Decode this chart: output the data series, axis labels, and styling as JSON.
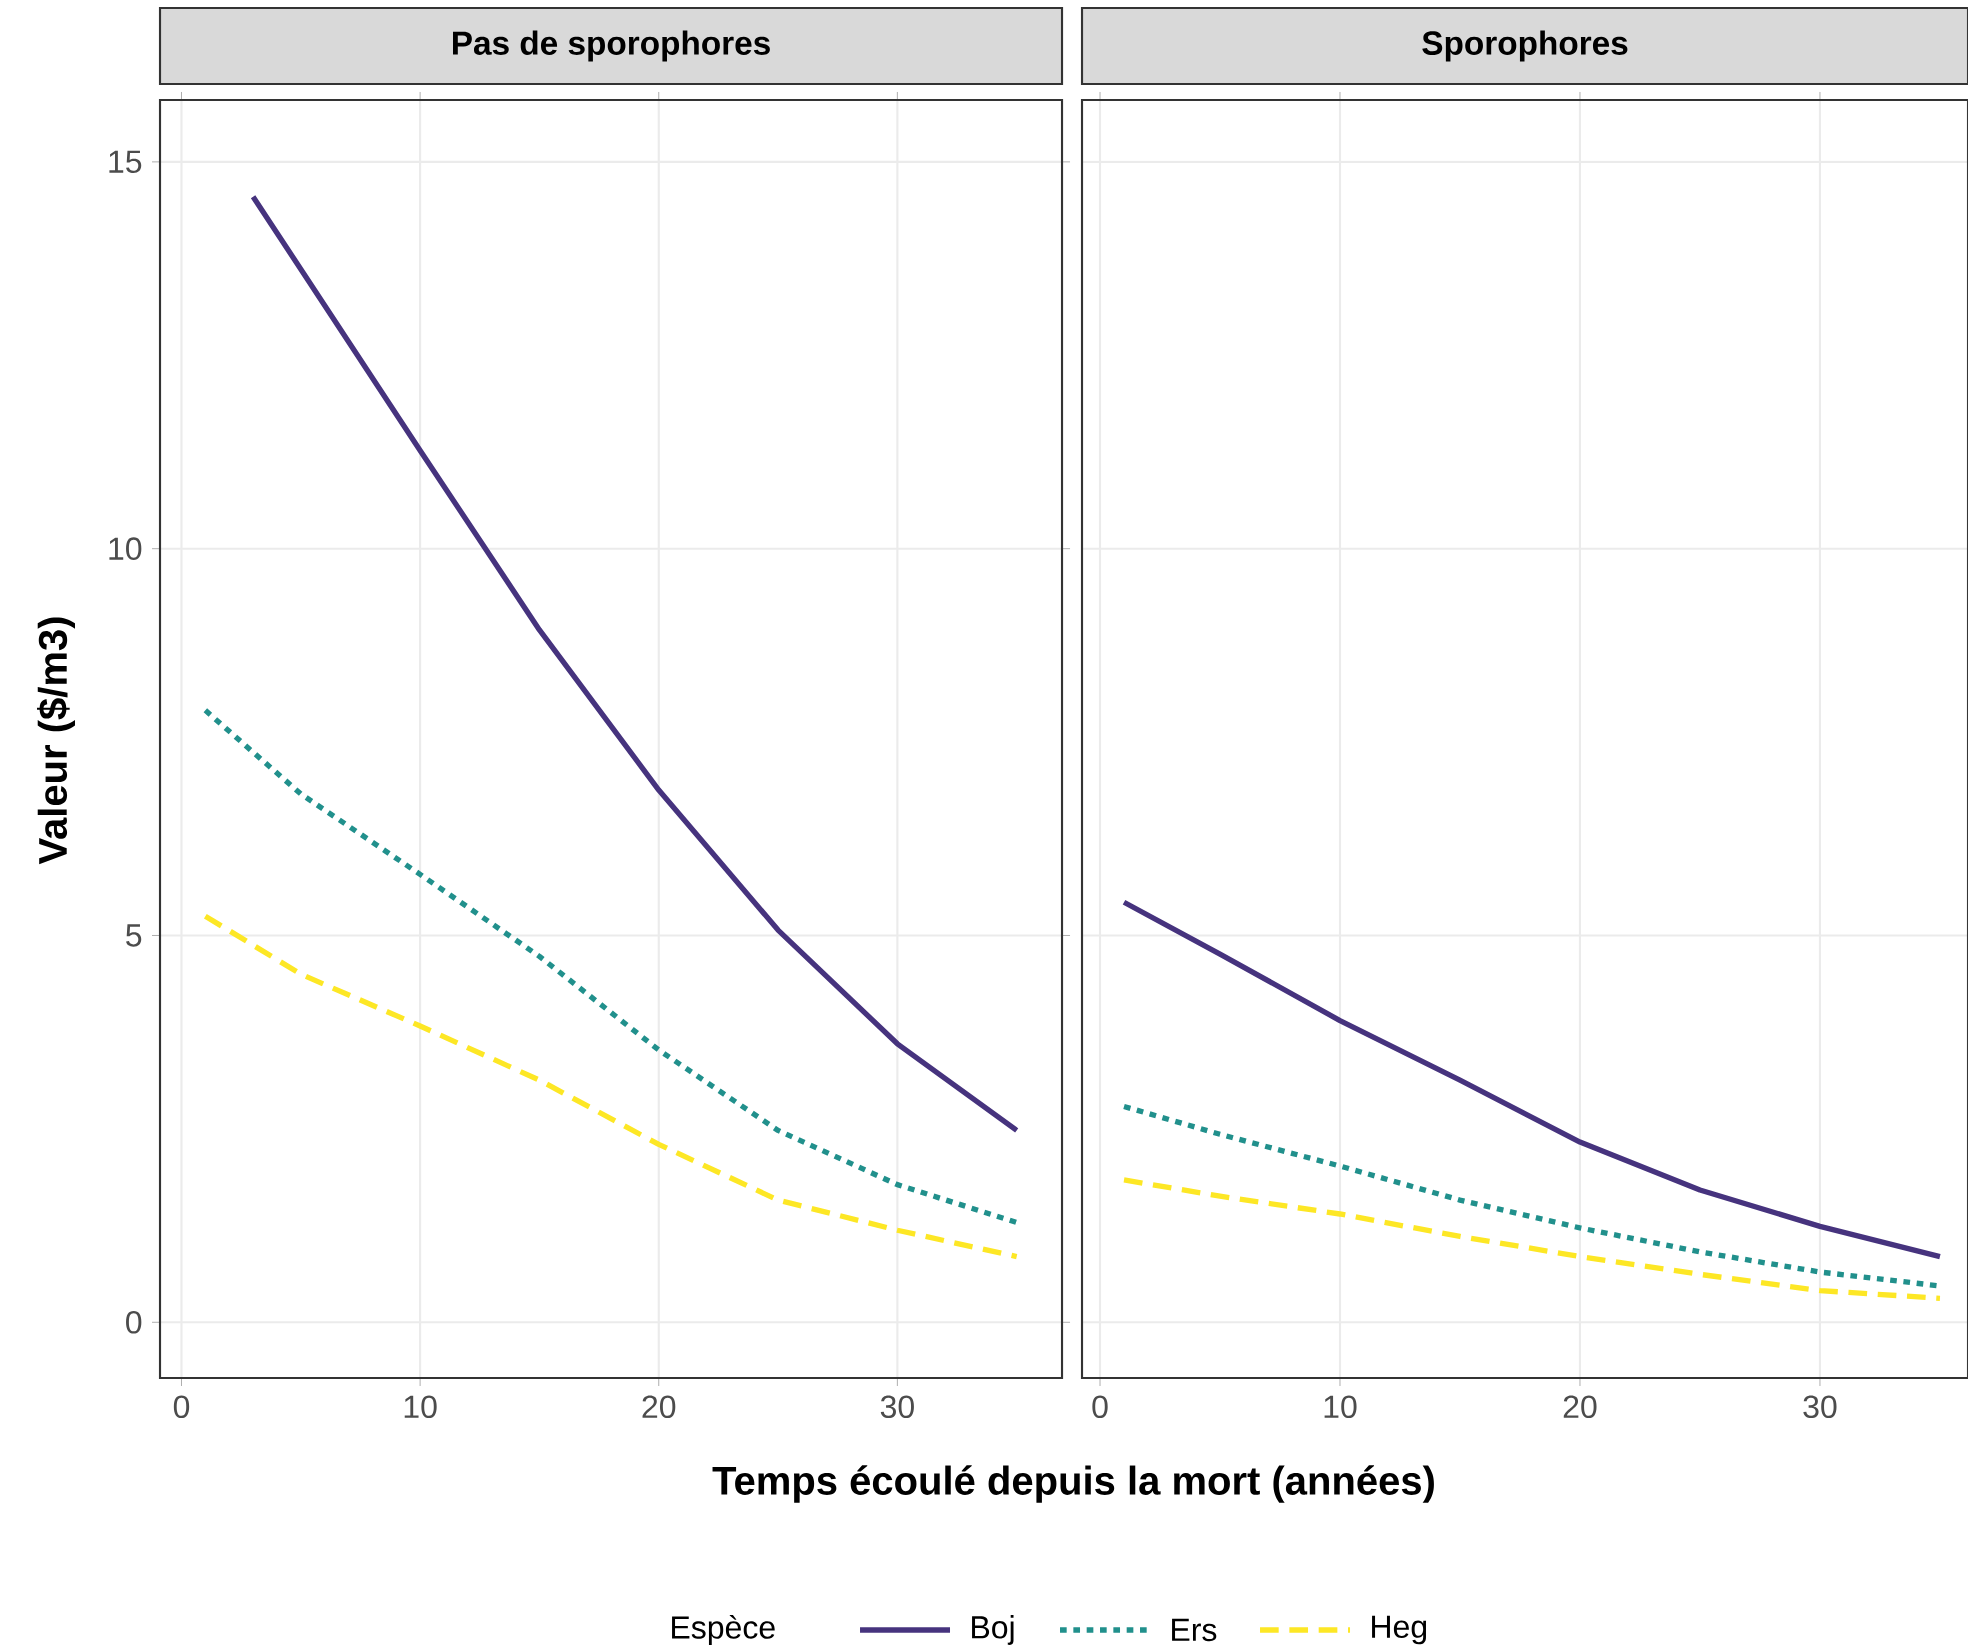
{
  "chart_data": [
    {
      "type": "line",
      "title": "Pas de sporophores",
      "xlabel": "Temps écoulé depuis la mort (années)",
      "ylabel": "Valeur ($/m3)",
      "legend_title": "Espèce",
      "legend": "bottom",
      "grid": true,
      "xlim": [
        -0.9,
        36.9
      ],
      "ylim": [
        -0.72,
        15.8
      ],
      "xticks": [
        0,
        10,
        20,
        30
      ],
      "yticks": [
        0,
        5,
        10,
        15
      ],
      "series": [
        {
          "name": "Boj",
          "color": "#46337e",
          "line_style": "solid",
          "x": [
            3,
            10,
            15,
            20,
            25,
            30,
            35
          ],
          "values": [
            14.55,
            11.27,
            8.95,
            6.88,
            5.07,
            3.6,
            2.48
          ]
        },
        {
          "name": "Ers",
          "color": "#21908c",
          "line_style": "dotted",
          "x": [
            1,
            5,
            10,
            15,
            20,
            25,
            30,
            35
          ],
          "values": [
            7.91,
            6.83,
            5.79,
            4.73,
            3.52,
            2.48,
            1.78,
            1.29
          ]
        },
        {
          "name": "Heg",
          "color": "#fde725",
          "line_style": "dashed",
          "x": [
            1,
            5,
            10,
            15,
            20,
            25,
            30,
            35
          ],
          "values": [
            5.25,
            4.5,
            3.83,
            3.13,
            2.3,
            1.58,
            1.19,
            0.85
          ]
        }
      ]
    },
    {
      "type": "line",
      "title": "Sporophores",
      "grid": true,
      "tick_labels": "x",
      "xlim": [
        -0.75,
        36.17
      ],
      "ylim": [
        -0.72,
        15.8
      ],
      "xticks": [
        0,
        10,
        20,
        30
      ],
      "yticks": [
        0,
        5,
        10,
        15
      ],
      "series": [
        {
          "color": "#46337e",
          "line_style": "solid",
          "x": [
            1,
            5,
            10,
            15,
            20,
            25,
            30,
            35
          ],
          "values": [
            5.43,
            4.76,
            3.9,
            3.13,
            2.33,
            1.71,
            1.24,
            0.85
          ]
        },
        {
          "color": "#21908c",
          "line_style": "dotted",
          "x": [
            1,
            5,
            10,
            15,
            20,
            25,
            30,
            35
          ],
          "values": [
            2.79,
            2.43,
            2.02,
            1.58,
            1.22,
            0.91,
            0.65,
            0.47
          ]
        },
        {
          "color": "#fde725",
          "line_style": "dashed",
          "x": [
            1,
            5,
            10,
            15,
            20,
            25,
            30,
            35
          ],
          "values": [
            1.84,
            1.63,
            1.4,
            1.11,
            0.85,
            0.62,
            0.41,
            0.31
          ]
        }
      ]
    }
  ]
}
